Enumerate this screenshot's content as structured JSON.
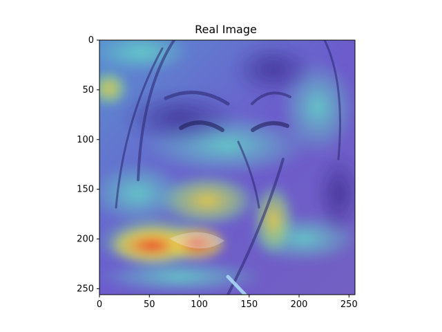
{
  "chart_data": {
    "type": "heatmap",
    "title": "Real Image",
    "xlabel": "",
    "ylabel": "",
    "xlim": [
      0,
      256
    ],
    "ylim": [
      256,
      0
    ],
    "x_ticks": [
      0,
      50,
      100,
      150,
      200,
      250
    ],
    "y_ticks": [
      0,
      50,
      100,
      150,
      200,
      250
    ],
    "x_tick_labels": [
      "0",
      "50",
      "100",
      "150",
      "200",
      "250"
    ],
    "y_tick_labels": [
      "0",
      "50",
      "100",
      "150",
      "200",
      "250"
    ],
    "grid": false,
    "colormap": "jet",
    "overlay": "attention heatmap over face photograph",
    "hotspots": [
      {
        "x": 50,
        "y": 205,
        "intensity": 1.0
      },
      {
        "x": 95,
        "y": 205,
        "intensity": 0.95
      },
      {
        "x": 175,
        "y": 185,
        "intensity": 0.7
      },
      {
        "x": 10,
        "y": 48,
        "intensity": 0.65
      },
      {
        "x": 105,
        "y": 170,
        "intensity": 0.55
      },
      {
        "x": 20,
        "y": 10,
        "intensity": 0.5
      }
    ]
  },
  "colors": {
    "background": "#ffffff",
    "cool": "#6a52c8",
    "mid": "#5cc9b8",
    "warm": "#f2d23a",
    "hot": "#ec3b2c"
  }
}
